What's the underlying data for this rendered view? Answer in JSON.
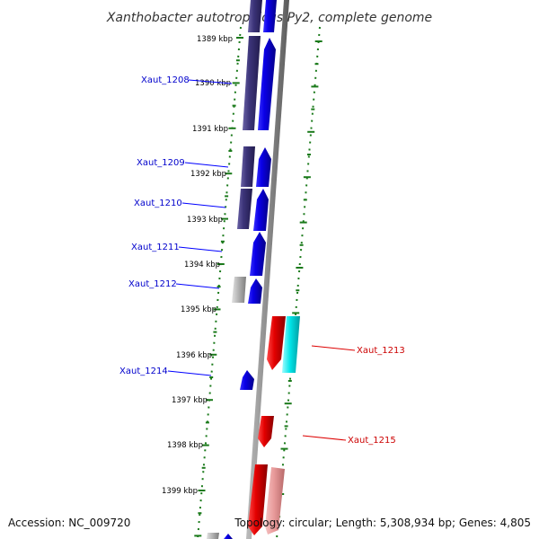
{
  "map": {
    "title": "Xanthobacter autotrophicus Py2, complete genome",
    "accession": "Accession: NC_009720",
    "topology": "Topology: circular; Length: 5,308,934 bp; Genes: 4,805"
  },
  "colors": {
    "forward_cds": "#0a00e8",
    "forward_dark": "#3c3479",
    "reverse_cds": "#e40000",
    "reverse_light": "#e89a9a",
    "cyan_feature": "#00e4e8",
    "gray_feature": "#b4b4b4",
    "backbone": "#8c8c8c",
    "tick_marks": "#1b7a1b"
  },
  "ticks": [
    {
      "label": "1389 kbp"
    },
    {
      "label": "1390 kbp"
    },
    {
      "label": "1391 kbp"
    },
    {
      "label": "1392 kbp"
    },
    {
      "label": "1393 kbp"
    },
    {
      "label": "1394 kbp"
    },
    {
      "label": "1395 kbp"
    },
    {
      "label": "1396 kbp"
    },
    {
      "label": "1397 kbp"
    },
    {
      "label": "1398 kbp"
    },
    {
      "label": "1399 kbp"
    }
  ],
  "gene_labels": [
    {
      "text": "Xaut_1208",
      "strand": "forward"
    },
    {
      "text": "Xaut_1209",
      "strand": "forward"
    },
    {
      "text": "Xaut_1210",
      "strand": "forward"
    },
    {
      "text": "Xaut_1211",
      "strand": "forward"
    },
    {
      "text": "Xaut_1212",
      "strand": "forward"
    },
    {
      "text": "Xaut_1214",
      "strand": "forward"
    },
    {
      "text": "Xaut_1213",
      "strand": "reverse"
    },
    {
      "text": "Xaut_1215",
      "strand": "reverse"
    }
  ]
}
